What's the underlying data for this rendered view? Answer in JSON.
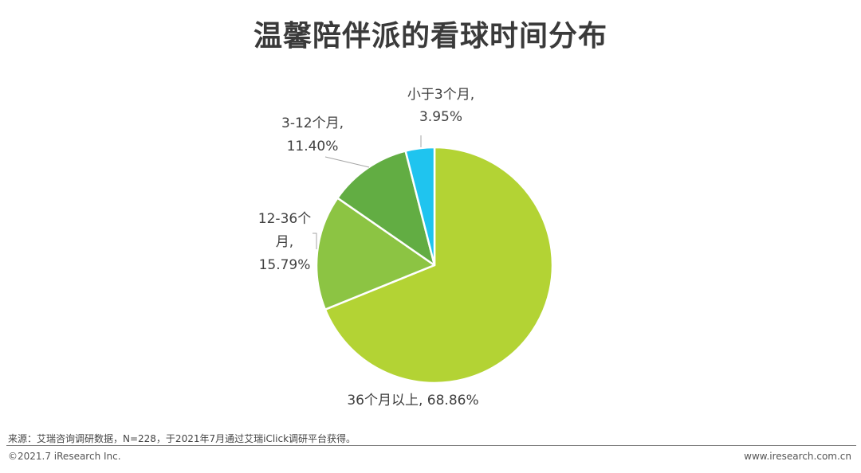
{
  "title": "温馨陪伴派的看球时间分布",
  "chart_data": {
    "type": "pie",
    "title": "温馨陪伴派的看球时间分布",
    "unit": "%",
    "start_angle_deg": 0,
    "direction": "clockwise",
    "slices": [
      {
        "label": "36个月以上",
        "value": 68.86,
        "color": "#b3d334",
        "label_lines": [
          "36个月以上, 68.86%"
        ]
      },
      {
        "label": "12-36个月",
        "value": 15.79,
        "color": "#8cc443",
        "label_lines": [
          "12-36个",
          "月,",
          "15.79%"
        ]
      },
      {
        "label": "3-12个月",
        "value": 11.4,
        "color": "#62ad43",
        "label_lines": [
          "3-12个月,",
          "11.40%"
        ]
      },
      {
        "label": "小于3个月",
        "value": 3.95,
        "color": "#1fc4ef",
        "label_lines": [
          "小于3个月,",
          "3.95%"
        ]
      }
    ]
  },
  "footer": {
    "source": "来源：艾瑞咨询调研数据，N=228，于2021年7月通过艾瑞iClick调研平台获得。",
    "copyright": "©2021.7 iResearch Inc.",
    "website": "www.iresearch.com.cn"
  }
}
